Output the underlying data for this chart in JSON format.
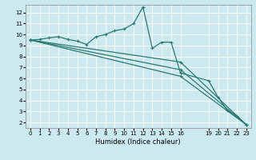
{
  "xlabel": "Humidex (Indice chaleur)",
  "bg_color": "#cce9f0",
  "grid_color": "#ffffff",
  "line_color": "#2a7a6e",
  "xlim": [
    -0.5,
    23.5
  ],
  "ylim": [
    1.5,
    12.7
  ],
  "xticks": [
    0,
    1,
    2,
    3,
    4,
    5,
    6,
    7,
    8,
    9,
    10,
    11,
    12,
    13,
    14,
    15,
    16,
    19,
    20,
    21,
    22,
    23
  ],
  "yticks": [
    2,
    3,
    4,
    5,
    6,
    7,
    8,
    9,
    10,
    11,
    12
  ],
  "lines": [
    {
      "x": [
        0,
        1,
        2,
        3,
        4,
        5,
        6,
        7,
        8,
        9,
        10,
        11,
        12,
        13,
        14,
        15,
        16,
        19,
        20,
        21,
        22,
        23
      ],
      "y": [
        9.5,
        9.55,
        9.7,
        9.8,
        9.55,
        9.4,
        9.1,
        9.8,
        10.0,
        10.35,
        10.5,
        11.0,
        12.5,
        8.75,
        9.3,
        9.3,
        6.5,
        5.8,
        4.3,
        3.1,
        2.6,
        1.8
      ]
    },
    {
      "x": [
        0,
        16,
        23
      ],
      "y": [
        9.5,
        7.5,
        1.8
      ]
    },
    {
      "x": [
        0,
        16,
        23
      ],
      "y": [
        9.5,
        6.8,
        1.8
      ]
    },
    {
      "x": [
        0,
        16,
        23
      ],
      "y": [
        9.5,
        6.2,
        1.8
      ]
    }
  ]
}
